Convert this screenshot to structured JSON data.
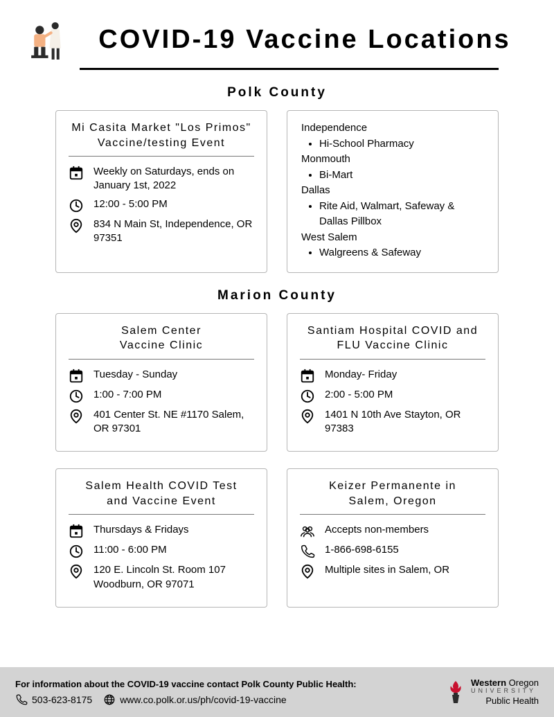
{
  "colors": {
    "text": "#000000",
    "border": "#b5b5b5",
    "divider": "#777777",
    "rule": "#000000",
    "footer_bg": "#d3d3d3",
    "logo_red": "#c8102e",
    "background": "#ffffff"
  },
  "title": "COVID-19 Vaccine Locations",
  "sections": [
    {
      "heading": "Polk County",
      "cards": [
        {
          "title": "Mi Casita Market \"Los Primos\"\nVaccine/testing Event",
          "rows": [
            {
              "icon": "calendar",
              "text": "Weekly on Saturdays, ends on January 1st, 2022"
            },
            {
              "icon": "clock",
              "text": "12:00 - 5:00 PM"
            },
            {
              "icon": "pin",
              "text": "834 N Main St, Independence, OR 97351"
            }
          ]
        },
        {
          "pharmacies": [
            {
              "city": "Independence",
              "items": [
                "Hi-School Pharmacy"
              ]
            },
            {
              "city": "Monmouth",
              "items": [
                "Bi-Mart"
              ]
            },
            {
              "city": "Dallas",
              "items": [
                "Rite Aid, Walmart, Safeway & Dallas Pillbox"
              ]
            },
            {
              "city": "West Salem",
              "items": [
                "Walgreens & Safeway"
              ]
            }
          ]
        }
      ]
    },
    {
      "heading": "Marion County",
      "cards": [
        {
          "title": "Salem Center\nVaccine Clinic",
          "rows": [
            {
              "icon": "calendar",
              "text": "Tuesday - Sunday"
            },
            {
              "icon": "clock",
              "text": "1:00 - 7:00 PM"
            },
            {
              "icon": "pin",
              "text": "401 Center St. NE #1170 Salem, OR 97301"
            }
          ]
        },
        {
          "title": "Santiam Hospital COVID and\nFLU Vaccine Clinic",
          "rows": [
            {
              "icon": "calendar",
              "text": "Monday- Friday"
            },
            {
              "icon": "clock",
              "text": "2:00 - 5:00 PM"
            },
            {
              "icon": "pin",
              "text": "1401 N 10th Ave Stayton, OR 97383"
            }
          ]
        },
        {
          "title": "Salem Health COVID Test\nand Vaccine Event",
          "rows": [
            {
              "icon": "calendar",
              "text": "Thursdays & Fridays"
            },
            {
              "icon": "clock",
              "text": "11:00 - 6:00 PM"
            },
            {
              "icon": "pin",
              "text": "120 E. Lincoln St. Room 107 Woodburn, OR 97071"
            }
          ]
        },
        {
          "title": "Keizer Permanente in\nSalem, Oregon",
          "rows": [
            {
              "icon": "people",
              "text": "Accepts non-members"
            },
            {
              "icon": "phone",
              "text": "1-866-698-6155"
            },
            {
              "icon": "pin",
              "text": "Multiple sites in Salem, OR"
            }
          ]
        }
      ]
    }
  ],
  "footer": {
    "heading": "For information about the COVID-19 vaccine contact Polk County Public Health:",
    "phone": "503-623-8175",
    "url": "www.co.polk.or.us/ph/covid-19-vaccine",
    "logo": {
      "line1_bold": "Western",
      "line1_rest": " Oregon",
      "line2": "UNIVERSITY",
      "line3": "Public Health"
    }
  }
}
